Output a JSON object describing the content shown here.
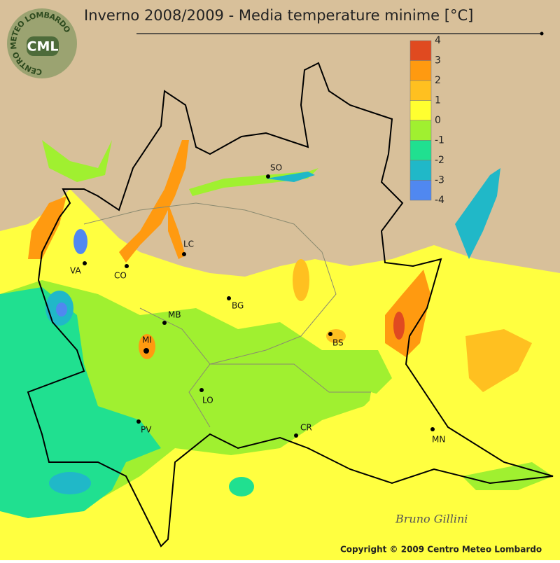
{
  "header": {
    "title": "Inverno 2008/2009 - Media temperature minime [°C]"
  },
  "logo": {
    "text": "CML",
    "ring": "CENTRO METEO LOMBARDO"
  },
  "legend": {
    "labels": [
      "4",
      "3",
      "2",
      "1",
      "0",
      "-1",
      "-2",
      "-3",
      "-4"
    ],
    "colors": [
      "#e04a20",
      "#ff9a10",
      "#ffc020",
      "#ffff30",
      "#a0f030",
      "#20e090",
      "#20b8c8",
      "#5088f0"
    ]
  },
  "cities": [
    "SO",
    "LC",
    "CO",
    "VA",
    "MB",
    "MI",
    "BG",
    "BS",
    "LO",
    "PV",
    "CR",
    "MN"
  ],
  "signature": "Bruno Gillini",
  "footer": {
    "copyright": "Copyright © 2009 Centro Meteo Lombardo"
  }
}
